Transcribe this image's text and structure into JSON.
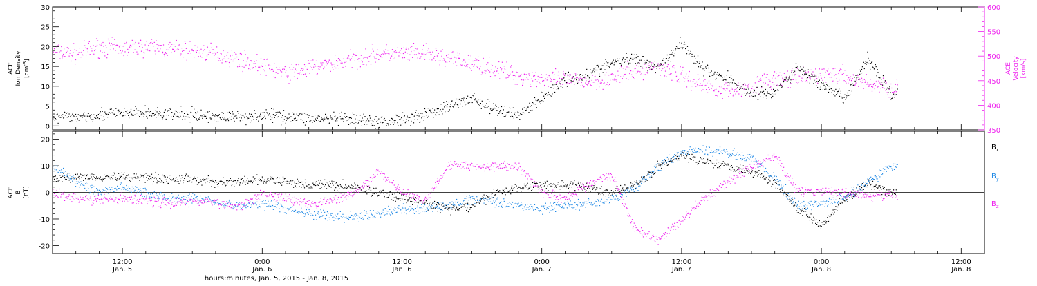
{
  "colors": {
    "density": "#000000",
    "velocity": "#ee22ee",
    "bx": "#000000",
    "by": "#1e88e5",
    "bz": "#ee22ee",
    "axis": "#000000"
  },
  "x_axis": {
    "title": "hours:minutes, Jan. 5, 2015 - Jan. 8, 2015",
    "ticks": [
      {
        "time": "12:00",
        "date": "Jan. 5",
        "hours": 12
      },
      {
        "time": "0:00",
        "date": "Jan. 6",
        "hours": 24
      },
      {
        "time": "12:00",
        "date": "Jan. 6",
        "hours": 36
      },
      {
        "time": "0:00",
        "date": "Jan. 7",
        "hours": 48
      },
      {
        "time": "12:00",
        "date": "Jan. 7",
        "hours": 60
      },
      {
        "time": "0:00",
        "date": "Jan. 8",
        "hours": 72
      },
      {
        "time": "12:00",
        "date": "Jan. 8",
        "hours": 84
      }
    ],
    "range_hours": [
      6,
      86
    ],
    "data_end_hours": 78.5
  },
  "chart_data": [
    {
      "type": "scatter",
      "left_axis": {
        "label_lines": [
          "ACE",
          "Ion Density"
        ],
        "unit": "[cm",
        "unit_sup": "-3",
        "unit_end": "]",
        "ylim": [
          -1,
          30
        ],
        "ticks": [
          0,
          5,
          10,
          15,
          20,
          25,
          30
        ]
      },
      "right_axis": {
        "label_lines": [
          "ACE",
          "Velocity"
        ],
        "unit": "[km/s]",
        "ylim": [
          350,
          600
        ],
        "ticks": [
          350,
          400,
          450,
          500,
          550,
          600
        ]
      },
      "series": [
        {
          "key": "density",
          "axis": "left",
          "points": [
            [
              6,
              2
            ],
            [
              8,
              2.5
            ],
            [
              10,
              3
            ],
            [
              12,
              3.2
            ],
            [
              14,
              3.3
            ],
            [
              16,
              3
            ],
            [
              18,
              2.8
            ],
            [
              20,
              2.5
            ],
            [
              22,
              2.3
            ],
            [
              24,
              2.8
            ],
            [
              26,
              2.5
            ],
            [
              28,
              2
            ],
            [
              30,
              1.8
            ],
            [
              32,
              1.5
            ],
            [
              34,
              1
            ],
            [
              36,
              1.8
            ],
            [
              38,
              3
            ],
            [
              40,
              5
            ],
            [
              42,
              7
            ],
            [
              44,
              4
            ],
            [
              46,
              3
            ],
            [
              48,
              7
            ],
            [
              50,
              12
            ],
            [
              52,
              13
            ],
            [
              54,
              16
            ],
            [
              56,
              17
            ],
            [
              58,
              15
            ],
            [
              60,
              21
            ],
            [
              62,
              14
            ],
            [
              64,
              12
            ],
            [
              66,
              8
            ],
            [
              68,
              8.5
            ],
            [
              70,
              15
            ],
            [
              72,
              10
            ],
            [
              74,
              7
            ],
            [
              76,
              17
            ],
            [
              78,
              8
            ]
          ]
        },
        {
          "key": "velocity",
          "axis": "right",
          "points": [
            [
              6,
              510
            ],
            [
              8,
              505
            ],
            [
              10,
              520
            ],
            [
              12,
              515
            ],
            [
              14,
              520
            ],
            [
              16,
              515
            ],
            [
              18,
              512
            ],
            [
              20,
              505
            ],
            [
              22,
              495
            ],
            [
              24,
              480
            ],
            [
              26,
              465
            ],
            [
              28,
              475
            ],
            [
              30,
              485
            ],
            [
              32,
              495
            ],
            [
              34,
              505
            ],
            [
              36,
              505
            ],
            [
              38,
              505
            ],
            [
              40,
              495
            ],
            [
              42,
              485
            ],
            [
              44,
              475
            ],
            [
              46,
              460
            ],
            [
              48,
              455
            ],
            [
              50,
              450
            ],
            [
              52,
              450
            ],
            [
              54,
              455
            ],
            [
              56,
              470
            ],
            [
              58,
              480
            ],
            [
              60,
              460
            ],
            [
              62,
              440
            ],
            [
              64,
              430
            ],
            [
              66,
              440
            ],
            [
              68,
              455
            ],
            [
              70,
              455
            ],
            [
              72,
              465
            ],
            [
              74,
              460
            ],
            [
              76,
              445
            ],
            [
              78,
              435
            ]
          ]
        }
      ]
    },
    {
      "type": "scatter",
      "left_axis": {
        "label_lines": [
          "ACE",
          "B"
        ],
        "unit": "[nT]",
        "ylim": [
          -23,
          23
        ],
        "ticks": [
          -20,
          -10,
          0,
          10,
          20
        ]
      },
      "legend": [
        {
          "key": "bx",
          "label": "B",
          "sub": "x"
        },
        {
          "key": "by",
          "label": "B",
          "sub": "y"
        },
        {
          "key": "bz",
          "label": "B",
          "sub": "z"
        }
      ],
      "series": [
        {
          "key": "bx",
          "points": [
            [
              6,
              5
            ],
            [
              8,
              6
            ],
            [
              10,
              6
            ],
            [
              12,
              6
            ],
            [
              14,
              6
            ],
            [
              16,
              5
            ],
            [
              18,
              5
            ],
            [
              20,
              4
            ],
            [
              22,
              4
            ],
            [
              24,
              5
            ],
            [
              26,
              4
            ],
            [
              28,
              3
            ],
            [
              30,
              3
            ],
            [
              32,
              2
            ],
            [
              34,
              0
            ],
            [
              36,
              -2
            ],
            [
              38,
              -4
            ],
            [
              40,
              -6
            ],
            [
              42,
              -5
            ],
            [
              44,
              0
            ],
            [
              46,
              2
            ],
            [
              48,
              3
            ],
            [
              50,
              3
            ],
            [
              52,
              2
            ],
            [
              54,
              0
            ],
            [
              56,
              3
            ],
            [
              58,
              10
            ],
            [
              60,
              14
            ],
            [
              62,
              12
            ],
            [
              64,
              10
            ],
            [
              66,
              8
            ],
            [
              68,
              4
            ],
            [
              70,
              -6
            ],
            [
              72,
              -12
            ],
            [
              74,
              -2
            ],
            [
              76,
              3
            ],
            [
              78,
              0
            ]
          ]
        },
        {
          "key": "by",
          "points": [
            [
              6,
              10
            ],
            [
              8,
              4
            ],
            [
              10,
              0
            ],
            [
              12,
              2
            ],
            [
              14,
              0
            ],
            [
              16,
              -2
            ],
            [
              18,
              -2
            ],
            [
              20,
              -3
            ],
            [
              22,
              -5
            ],
            [
              24,
              -4
            ],
            [
              26,
              -6
            ],
            [
              28,
              -8
            ],
            [
              30,
              -9
            ],
            [
              32,
              -9
            ],
            [
              34,
              -8
            ],
            [
              36,
              -6
            ],
            [
              38,
              -6
            ],
            [
              40,
              -5
            ],
            [
              42,
              -2
            ],
            [
              44,
              -3
            ],
            [
              46,
              -5
            ],
            [
              48,
              -6
            ],
            [
              50,
              -5
            ],
            [
              52,
              -4
            ],
            [
              54,
              -3
            ],
            [
              56,
              2
            ],
            [
              58,
              10
            ],
            [
              60,
              15
            ],
            [
              62,
              16
            ],
            [
              64,
              15
            ],
            [
              66,
              13
            ],
            [
              68,
              5
            ],
            [
              70,
              -5
            ],
            [
              72,
              -4
            ],
            [
              74,
              -2
            ],
            [
              76,
              4
            ],
            [
              78,
              10
            ]
          ]
        },
        {
          "key": "bz",
          "points": [
            [
              6,
              0
            ],
            [
              8,
              -2
            ],
            [
              10,
              -3
            ],
            [
              12,
              -2
            ],
            [
              14,
              -3
            ],
            [
              16,
              -4
            ],
            [
              18,
              -3
            ],
            [
              20,
              -4
            ],
            [
              22,
              -5
            ],
            [
              24,
              0
            ],
            [
              26,
              -2
            ],
            [
              28,
              -4
            ],
            [
              30,
              -3
            ],
            [
              32,
              0
            ],
            [
              34,
              8
            ],
            [
              36,
              0
            ],
            [
              38,
              -3
            ],
            [
              40,
              11
            ],
            [
              42,
              10
            ],
            [
              44,
              10
            ],
            [
              46,
              10
            ],
            [
              48,
              0
            ],
            [
              50,
              -2
            ],
            [
              52,
              3
            ],
            [
              54,
              7
            ],
            [
              56,
              -14
            ],
            [
              58,
              -18
            ],
            [
              60,
              -10
            ],
            [
              62,
              -2
            ],
            [
              64,
              4
            ],
            [
              66,
              10
            ],
            [
              68,
              14
            ],
            [
              70,
              0
            ],
            [
              72,
              1
            ],
            [
              74,
              0
            ],
            [
              76,
              -1
            ],
            [
              78,
              -1
            ]
          ]
        }
      ]
    }
  ]
}
